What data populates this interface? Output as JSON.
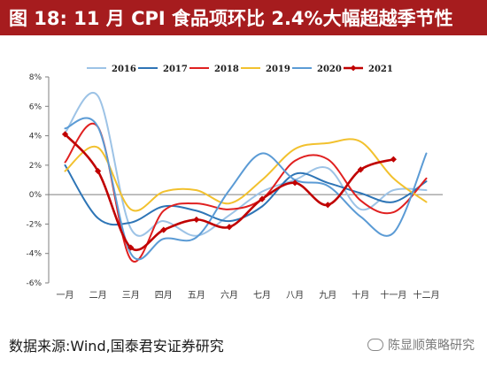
{
  "title": "图 18:  11 月 CPI 食品项环比 2.4%大幅超越季节性",
  "source": "数据来源:Wind,国泰君安证券研究",
  "watermark": "陈显顺策略研究",
  "chart_data": {
    "type": "line",
    "categories": [
      "一月",
      "二月",
      "三月",
      "四月",
      "五月",
      "六月",
      "七月",
      "八月",
      "九月",
      "十月",
      "十一月",
      "十二月"
    ],
    "y_ticks": [
      "-6%",
      "-4%",
      "-2%",
      "0%",
      "2%",
      "4%",
      "6%",
      "8%"
    ],
    "ylim": [
      -6,
      8
    ],
    "y_unit": "%",
    "legend_position": "top",
    "grid": false,
    "series": [
      {
        "name": "2016",
        "color": "#9dc3e6",
        "width": 2,
        "markers": false,
        "values": [
          4.2,
          6.7,
          -2.3,
          -1.8,
          -2.8,
          -1.4,
          0.2,
          1.0,
          1.8,
          -1.0,
          0.3,
          0.3
        ]
      },
      {
        "name": "2017",
        "color": "#2e75b6",
        "width": 2,
        "markers": false,
        "values": [
          2.0,
          -1.6,
          -1.9,
          -0.8,
          -1.1,
          -1.8,
          -0.8,
          1.4,
          0.8,
          0.1,
          -0.5,
          0.9
        ]
      },
      {
        "name": "2018",
        "color": "#e02020",
        "width": 2,
        "markers": false,
        "values": [
          2.2,
          4.6,
          -4.4,
          -1.1,
          -0.6,
          -1.0,
          -0.3,
          2.3,
          2.4,
          -0.4,
          -1.2,
          1.1
        ]
      },
      {
        "name": "2019",
        "color": "#f2c12e",
        "width": 2,
        "markers": false,
        "values": [
          1.6,
          3.2,
          -1.0,
          0.2,
          0.3,
          -0.6,
          1.0,
          3.1,
          3.5,
          3.6,
          1.1,
          -0.5
        ]
      },
      {
        "name": "2020",
        "color": "#5b9bd5",
        "width": 2,
        "markers": false,
        "values": [
          4.5,
          4.6,
          -4.0,
          -3.0,
          -2.9,
          0.3,
          2.8,
          1.0,
          0.6,
          -1.5,
          -2.6,
          2.8
        ]
      },
      {
        "name": "2021",
        "color": "#c00000",
        "width": 2.6,
        "markers": true,
        "values": [
          4.1,
          1.6,
          -3.6,
          -2.4,
          -1.7,
          -2.2,
          -0.3,
          0.8,
          -0.7,
          1.7,
          2.4,
          null
        ]
      }
    ]
  }
}
